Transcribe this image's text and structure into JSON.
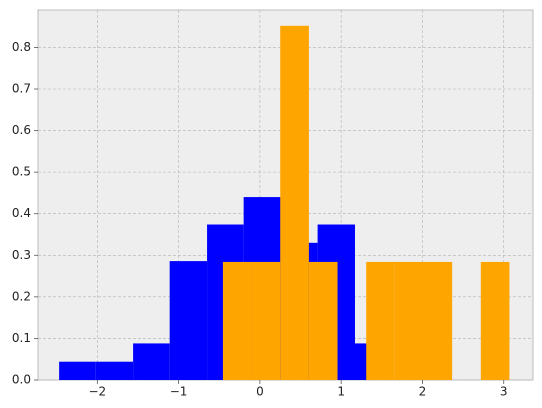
{
  "chart_data": {
    "type": "histogram",
    "series": [
      {
        "color": "#0000ff",
        "bins": [
          -2.47,
          -2.02,
          -1.56,
          -1.11,
          -0.65,
          -0.2,
          0.26,
          0.71,
          1.17,
          1.62
        ],
        "values": [
          0.044,
          0.044,
          0.088,
          0.286,
          0.374,
          0.44,
          0.33,
          0.374,
          0.088
        ]
      },
      {
        "color": "#ffa500",
        "bins": [
          -0.455,
          -0.103,
          0.25,
          0.603,
          0.955,
          1.308,
          1.66,
          2.013,
          2.365,
          2.718,
          3.07
        ],
        "values": [
          0.284,
          0.284,
          0.852,
          0.284,
          0,
          0.284,
          0.284,
          0.284,
          0,
          0.284
        ]
      }
    ],
    "xlim": [
      -2.73,
      3.36
    ],
    "ylim": [
      0,
      0.89
    ],
    "xticks": [
      {
        "value": -2,
        "label": "−2"
      },
      {
        "value": -1,
        "label": "−1"
      },
      0,
      1,
      2,
      3
    ],
    "yticks": [
      {
        "value": 0,
        "label": "0.0"
      },
      0.1,
      0.2,
      0.3,
      0.4,
      0.5,
      0.6,
      0.7,
      0.8
    ],
    "grid": true,
    "background": "#eeeeee"
  }
}
